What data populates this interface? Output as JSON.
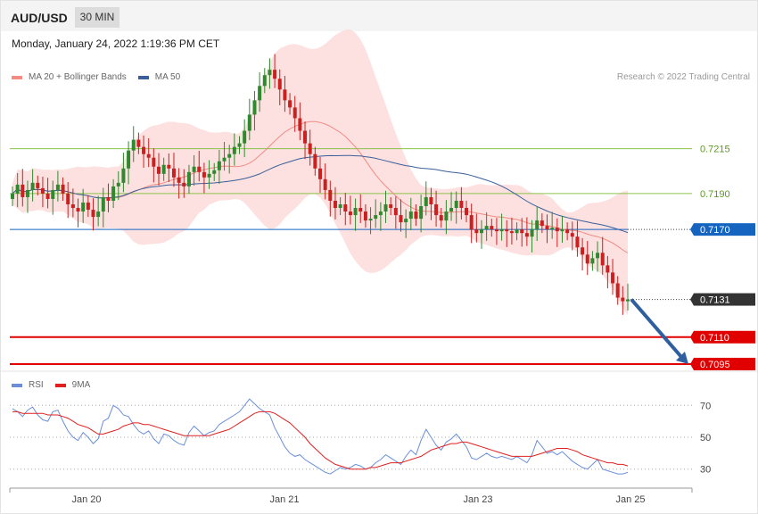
{
  "header": {
    "symbol": "AUD/USD",
    "timeframe": "30 MIN",
    "datetime": "Monday, January 24, 2022 1:19:36 PM CET"
  },
  "legend": {
    "ma20": {
      "label": "MA 20 + Bollinger Bands",
      "color": "#f28b82"
    },
    "ma50": {
      "label": "MA 50",
      "color": "#3a5f9a"
    },
    "copyright": "Research © 2022 Trading Central"
  },
  "rsi_legend": {
    "rsi": {
      "label": "RSI",
      "color": "#6a8fd8"
    },
    "ma9": {
      "label": "9MA",
      "color": "#e02020"
    }
  },
  "chart_data": [
    {
      "type": "candlestick",
      "symbol": "AUD/USD",
      "timeframe": "30 MIN",
      "ylim": [
        0.709,
        0.7278
      ],
      "x_tick_labels": [
        "Jan 20",
        "Jan 21",
        "Jan 23",
        "Jan 25"
      ],
      "levels": [
        {
          "value": 0.7215,
          "label": "0.7215",
          "kind": "resistance",
          "color": "#8bc34a"
        },
        {
          "value": 0.719,
          "label": "0.7190",
          "kind": "resistance",
          "color": "#8bc34a"
        },
        {
          "value": 0.717,
          "label": "0.7170",
          "kind": "pivot",
          "color": "#1565c0"
        },
        {
          "value": 0.7131,
          "label": "0.7131",
          "kind": "last_price",
          "color": "#333333"
        },
        {
          "value": 0.711,
          "label": "0.7110",
          "kind": "support",
          "color": "#e00000"
        },
        {
          "value": 0.7095,
          "label": "0.7095",
          "kind": "support",
          "color": "#e00000"
        }
      ],
      "forecast_arrow": {
        "from": 0.7131,
        "to": 0.7095,
        "direction": "down"
      },
      "closes": [
        0.719,
        0.7195,
        0.7188,
        0.7192,
        0.7196,
        0.7193,
        0.719,
        0.7187,
        0.7192,
        0.7195,
        0.719,
        0.7184,
        0.7182,
        0.718,
        0.7185,
        0.7181,
        0.7177,
        0.718,
        0.7188,
        0.7186,
        0.7194,
        0.7196,
        0.7204,
        0.7214,
        0.722,
        0.7216,
        0.7212,
        0.721,
        0.7205,
        0.7201,
        0.7206,
        0.7204,
        0.7199,
        0.7196,
        0.7194,
        0.7202,
        0.7205,
        0.7202,
        0.7199,
        0.7201,
        0.7203,
        0.7208,
        0.721,
        0.7212,
        0.7216,
        0.7218,
        0.7225,
        0.7234,
        0.7242,
        0.725,
        0.7256,
        0.7259,
        0.7254,
        0.7248,
        0.7242,
        0.7238,
        0.7232,
        0.7225,
        0.7218,
        0.7212,
        0.7204,
        0.7198,
        0.7192,
        0.7186,
        0.7182,
        0.7184,
        0.718,
        0.7178,
        0.7182,
        0.718,
        0.7175,
        0.7176,
        0.7178,
        0.718,
        0.7184,
        0.7182,
        0.7178,
        0.7174,
        0.7176,
        0.718,
        0.7176,
        0.7183,
        0.7188,
        0.7184,
        0.7178,
        0.7175,
        0.718,
        0.7182,
        0.7186,
        0.7182,
        0.7178,
        0.717,
        0.7168,
        0.717,
        0.7172,
        0.717,
        0.7169,
        0.717,
        0.7169,
        0.7168,
        0.717,
        0.7168,
        0.7166,
        0.717,
        0.7175,
        0.7172,
        0.717,
        0.7171,
        0.7169,
        0.717,
        0.7168,
        0.7166,
        0.716,
        0.7156,
        0.7151,
        0.7154,
        0.7157,
        0.715,
        0.7146,
        0.714,
        0.7132,
        0.713,
        0.7131
      ],
      "series": [
        {
          "name": "MA 20 + Bollinger Bands",
          "color": "#f28b82"
        },
        {
          "name": "MA 50",
          "color": "#3a5f9a"
        }
      ]
    },
    {
      "type": "line",
      "panel": "RSI",
      "ylim": [
        22,
        78
      ],
      "y_ticks": [
        70,
        50,
        30
      ],
      "y_tick_labels": [
        "70",
        "50",
        "30"
      ],
      "series": [
        {
          "name": "RSI",
          "color": "#6a8fd8",
          "values": [
            68,
            66,
            63,
            67,
            69,
            64,
            61,
            60,
            66,
            67,
            60,
            54,
            50,
            48,
            53,
            50,
            46,
            49,
            60,
            62,
            70,
            68,
            64,
            63,
            58,
            54,
            52,
            54,
            49,
            46,
            52,
            51,
            48,
            46,
            45,
            53,
            57,
            54,
            51,
            53,
            54,
            58,
            60,
            62,
            64,
            66,
            70,
            74,
            71,
            68,
            66,
            64,
            56,
            50,
            44,
            40,
            38,
            39,
            36,
            34,
            32,
            30,
            28,
            27,
            29,
            31,
            30,
            31,
            33,
            32,
            30,
            31,
            34,
            36,
            39,
            37,
            35,
            33,
            38,
            42,
            39,
            48,
            55,
            50,
            45,
            42,
            47,
            49,
            52,
            48,
            44,
            37,
            36,
            38,
            40,
            38,
            37,
            38,
            37,
            36,
            38,
            36,
            34,
            39,
            48,
            44,
            40,
            41,
            39,
            41,
            38,
            35,
            33,
            31,
            30,
            33,
            36,
            30,
            29,
            28,
            27,
            27,
            28
          ]
        },
        {
          "name": "9MA",
          "color": "#e02020",
          "values": [
            66,
            66,
            65,
            65,
            65,
            65,
            65,
            64,
            64,
            64,
            63,
            62,
            60,
            58,
            57,
            56,
            54,
            52,
            52,
            53,
            54,
            55,
            57,
            58,
            59,
            59,
            58,
            58,
            57,
            56,
            55,
            54,
            53,
            52,
            51,
            51,
            51,
            51,
            51,
            51,
            52,
            53,
            54,
            55,
            57,
            59,
            61,
            63,
            65,
            66,
            66,
            66,
            65,
            63,
            61,
            59,
            56,
            53,
            50,
            46,
            43,
            40,
            37,
            35,
            33,
            32,
            31,
            30,
            30,
            30,
            30,
            31,
            31,
            32,
            33,
            34,
            34,
            34,
            35,
            36,
            37,
            38,
            40,
            42,
            43,
            44,
            45,
            46,
            46,
            47,
            47,
            46,
            45,
            44,
            43,
            42,
            41,
            40,
            39,
            38,
            38,
            38,
            38,
            38,
            39,
            40,
            41,
            42,
            43,
            43,
            43,
            42,
            41,
            39,
            38,
            37,
            36,
            35,
            34,
            34,
            33,
            33,
            32
          ]
        }
      ]
    }
  ]
}
